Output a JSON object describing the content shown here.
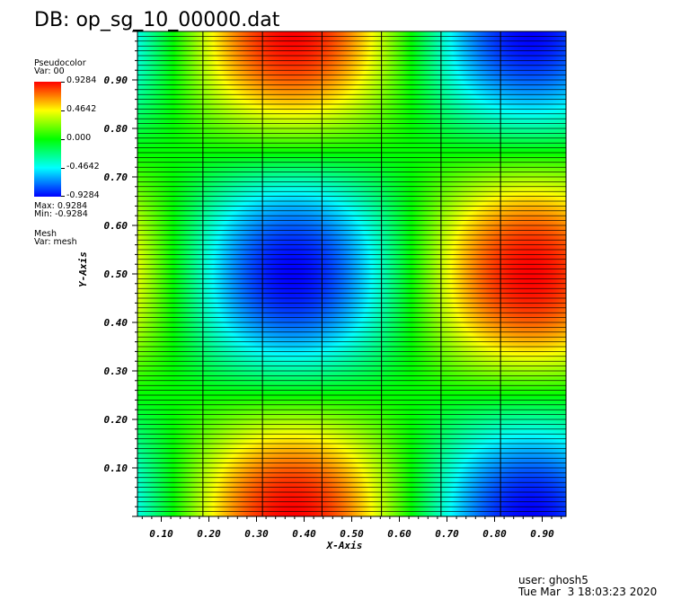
{
  "title": "DB: op_sg_10_00000.dat",
  "legend": {
    "plot_name": "Pseudocolor",
    "var_label": "Var: 00",
    "ticks": [
      "0.9284",
      "0.4642",
      "0.000",
      "-0.4642",
      "-0.9284"
    ],
    "max_label": "Max:  0.9284",
    "min_label": "Min: -0.9284",
    "mesh_name": "Mesh",
    "mesh_var_label": "Var: mesh"
  },
  "footer": {
    "user": "user: ghosh5",
    "date": "Tue Mar  3 18:03:23 2020"
  },
  "chart_data": {
    "type": "heatmap",
    "title": "DB: op_sg_10_00000.dat",
    "xlabel": "X-Axis",
    "ylabel": "Y-Axis",
    "xlim": [
      0.05,
      0.95
    ],
    "ylim": [
      0.0,
      1.0
    ],
    "xticks": [
      "0.10",
      "0.20",
      "0.30",
      "0.40",
      "0.50",
      "0.60",
      "0.70",
      "0.80",
      "0.90"
    ],
    "yticks": [
      "0.10",
      "0.20",
      "0.30",
      "0.40",
      "0.50",
      "0.60",
      "0.70",
      "0.80",
      "0.90"
    ],
    "colormap": [
      "#0000ff",
      "#00ffff",
      "#00ff00",
      "#ffff00",
      "#ff0000"
    ],
    "value_range": [
      -0.9284,
      0.9284
    ],
    "field": "0.9284 * sin(2*pi*(x-0.125)) * cos(2*pi*y)",
    "field_params": {
      "amplitude": 0.9284,
      "x_phase": 0.125,
      "freq": 1
    },
    "mesh_vertical_x": [
      0.1875,
      0.3125,
      0.4375,
      0.5625,
      0.6875,
      0.8125
    ],
    "mesh_horizontal_count": 100,
    "grid": true
  }
}
